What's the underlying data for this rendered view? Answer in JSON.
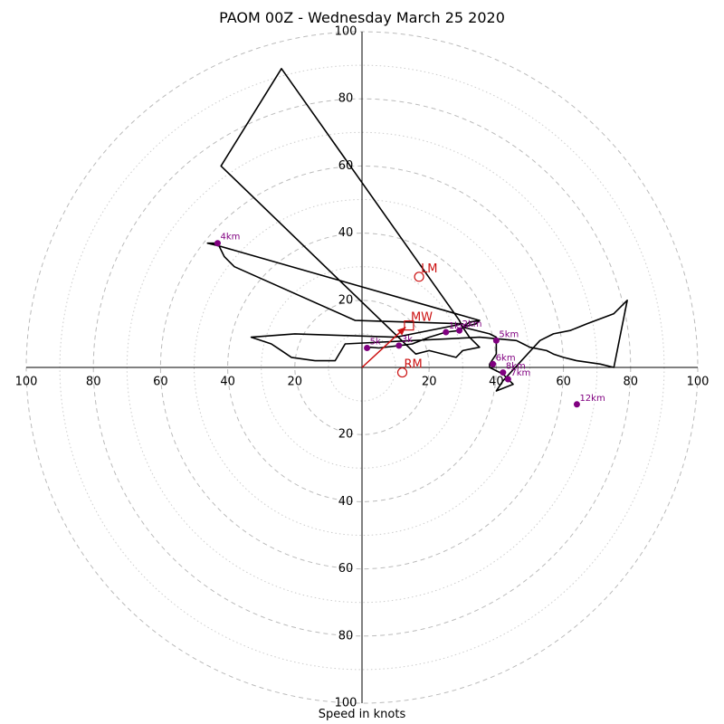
{
  "chart_data": {
    "type": "line",
    "title": "PAOM 00Z - Wednesday March 25 2020",
    "xlabel": "Speed in knots",
    "xlim": [
      -100,
      100
    ],
    "ylim": [
      -100,
      100
    ],
    "tick_values": [
      20,
      40,
      60,
      80,
      100
    ],
    "ring_dashed": [
      20,
      40,
      60,
      80,
      100
    ],
    "ring_dotted": [
      10,
      30,
      50,
      70,
      90
    ],
    "colors": {
      "trace": "#000000",
      "height_marker": "#800080",
      "motion": "#cc1111",
      "ring": "#bbbbbb"
    },
    "series": [
      {
        "x": [
          1.5,
          2.5,
          5,
          11,
          15,
          20,
          25,
          29,
          32,
          35,
          34,
          30,
          32,
          35,
          30,
          28,
          20,
          16,
          -42,
          -24,
          29,
          30,
          38,
          40,
          40,
          38,
          38,
          42,
          45,
          40,
          42,
          53,
          57,
          62,
          67,
          75,
          79,
          75,
          71,
          64,
          60,
          57,
          55,
          50,
          48,
          46,
          35,
          -5,
          -8,
          -14,
          -21,
          -24,
          -27,
          -33,
          -20,
          10,
          30,
          -2,
          -38,
          -41,
          -43,
          -46,
          -42,
          35
        ],
        "y": [
          5.2,
          6,
          5.8,
          6.5,
          7,
          9,
          10.5,
          11,
          13.5,
          14,
          13,
          12,
          9,
          6,
          5,
          3,
          5,
          4,
          60,
          89,
          14,
          12,
          10,
          9,
          4,
          1,
          0,
          -2,
          -5,
          -7,
          -4,
          8,
          10,
          11,
          13,
          16,
          20,
          0,
          1,
          2,
          3,
          4,
          5,
          6,
          7,
          8,
          9,
          7,
          2,
          2,
          3,
          5,
          7,
          9,
          10,
          9,
          13,
          14,
          30,
          33,
          37,
          37,
          36,
          14
        ]
      }
    ],
    "height_markers": [
      {
        "label": "5k",
        "x": 1.5,
        "y": 5.8
      },
      {
        "label": "3k",
        "x": 11,
        "y": 6.5
      },
      {
        "label": "1km",
        "x": 25,
        "y": 10.5
      },
      {
        "label": "2km",
        "x": 29,
        "y": 11
      },
      {
        "label": "5km",
        "x": 40,
        "y": 8
      },
      {
        "label": "4km",
        "x": -43,
        "y": 37
      },
      {
        "label": "6km",
        "x": 39,
        "y": 1
      },
      {
        "label": "8km",
        "x": 42,
        "y": -1.5
      },
      {
        "label": "7km",
        "x": 43.5,
        "y": -3.5
      },
      {
        "label": "12km",
        "x": 64,
        "y": -11
      }
    ],
    "motion_vectors": [
      {
        "label": "LM",
        "x": 17,
        "y": 27,
        "marker": "circle"
      },
      {
        "label": "MW",
        "x": 14,
        "y": 12.5,
        "marker": "square"
      },
      {
        "label": "RM",
        "x": 12,
        "y": -1.5,
        "marker": "circle"
      }
    ],
    "mean_wind_arrow": {
      "x": 13,
      "y": 12
    }
  }
}
